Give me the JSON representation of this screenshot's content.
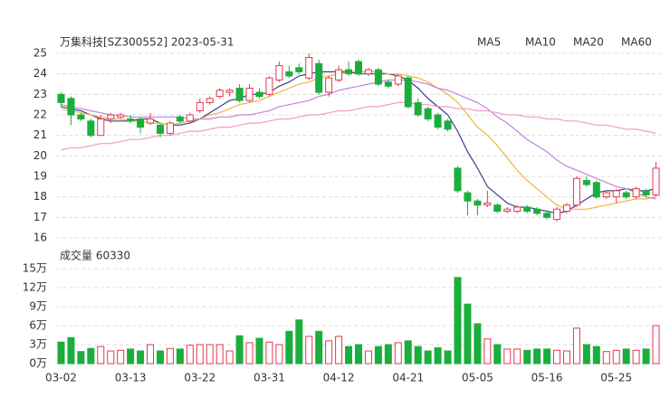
{
  "chart_data": [
    {
      "type": "candlestick",
      "title": "万集科技[SZ300552] 2023-05-31",
      "up_color": "#e8364d",
      "down_color": "#1aae3c",
      "grid": true,
      "ylim": [
        16,
        25
      ],
      "yticks": [
        16,
        17,
        18,
        19,
        20,
        21,
        22,
        23,
        24,
        25
      ],
      "open": [
        23.0,
        22.8,
        22.0,
        21.7,
        21.0,
        21.8,
        21.9,
        21.8,
        21.8,
        21.6,
        21.5,
        21.1,
        21.9,
        21.7,
        22.2,
        22.6,
        22.9,
        23.1,
        23.3,
        22.7,
        23.1,
        23.0,
        23.7,
        24.1,
        24.3,
        23.8,
        24.5,
        23.1,
        23.7,
        24.2,
        24.6,
        24.0,
        24.2,
        23.6,
        23.5,
        23.8,
        22.6,
        22.3,
        22.0,
        21.7,
        19.4,
        18.2,
        17.8,
        17.6,
        17.6,
        17.3,
        17.3,
        17.5,
        17.4,
        17.2,
        16.9,
        17.3,
        17.6,
        18.8,
        18.7,
        18.0,
        18.0,
        18.2,
        18.0,
        18.3,
        18.1
      ],
      "high": [
        23.1,
        22.9,
        22.1,
        21.8,
        22.0,
        22.1,
        22.1,
        22.0,
        21.9,
        22.1,
        21.6,
        21.7,
        22.0,
        22.1,
        22.8,
        22.9,
        23.3,
        23.3,
        23.5,
        23.5,
        23.3,
        23.9,
        24.6,
        24.4,
        24.5,
        25.0,
        24.7,
        23.9,
        24.4,
        24.6,
        24.7,
        24.3,
        24.3,
        23.7,
        24.0,
        23.9,
        22.8,
        22.4,
        22.1,
        21.8,
        19.5,
        18.3,
        17.9,
        18.3,
        17.7,
        17.5,
        17.6,
        17.6,
        17.5,
        17.3,
        17.5,
        17.7,
        19.0,
        19.0,
        18.8,
        18.3,
        18.4,
        18.3,
        18.5,
        18.4,
        19.7
      ],
      "low": [
        22.4,
        21.5,
        21.7,
        20.9,
        21.0,
        21.6,
        21.8,
        21.6,
        21.1,
        21.5,
        20.9,
        21.0,
        21.6,
        21.6,
        22.1,
        22.5,
        22.8,
        22.9,
        22.6,
        22.6,
        22.8,
        22.9,
        23.6,
        23.8,
        24.0,
        23.7,
        23.0,
        22.9,
        23.6,
        23.9,
        23.9,
        23.9,
        23.4,
        23.3,
        23.4,
        22.3,
        21.9,
        21.7,
        21.3,
        21.2,
        18.2,
        17.1,
        17.1,
        17.5,
        17.2,
        17.2,
        17.2,
        17.2,
        17.1,
        16.9,
        16.8,
        17.2,
        17.5,
        18.5,
        17.9,
        17.9,
        17.7,
        17.9,
        17.9,
        18.0,
        18.0
      ],
      "close": [
        22.6,
        22.0,
        21.8,
        21.0,
        21.8,
        22.0,
        22.0,
        21.7,
        21.4,
        21.8,
        21.1,
        21.6,
        21.7,
        22.0,
        22.6,
        22.8,
        23.2,
        23.2,
        22.7,
        23.3,
        22.9,
        23.8,
        24.4,
        23.9,
        24.1,
        24.8,
        23.1,
        23.8,
        24.2,
        24.0,
        24.0,
        24.2,
        23.5,
        23.4,
        23.9,
        22.4,
        22.0,
        21.8,
        21.4,
        21.3,
        18.3,
        17.8,
        17.6,
        17.7,
        17.3,
        17.4,
        17.5,
        17.3,
        17.2,
        17.0,
        17.4,
        17.6,
        18.9,
        18.6,
        18.0,
        18.2,
        18.3,
        18.0,
        18.4,
        18.1,
        19.4
      ],
      "series": [
        {
          "name": "MA5",
          "color": "#3a3f8f",
          "values": [
            22.4,
            22.3,
            22.2,
            22.0,
            21.8,
            21.7,
            21.7,
            21.7,
            21.8,
            21.8,
            21.6,
            21.5,
            21.5,
            21.6,
            21.8,
            22.1,
            22.4,
            22.7,
            22.8,
            23.0,
            23.0,
            23.1,
            23.4,
            23.6,
            23.9,
            24.0,
            24.1,
            24.1,
            24.1,
            24.1,
            24.0,
            24.0,
            24.0,
            24.0,
            23.9,
            23.7,
            23.3,
            22.8,
            22.4,
            22.0,
            21.2,
            20.2,
            19.4,
            18.5,
            18.1,
            17.7,
            17.5,
            17.5,
            17.4,
            17.3,
            17.2,
            17.3,
            17.6,
            17.9,
            18.2,
            18.3,
            18.3,
            18.4,
            18.3,
            18.3,
            18.4
          ]
        },
        {
          "name": "MA10",
          "color": "#f0b43c",
          "values": [
            22.3,
            22.2,
            22.1,
            22.0,
            21.9,
            21.8,
            21.8,
            21.7,
            21.7,
            21.6,
            21.6,
            21.5,
            21.6,
            21.7,
            21.8,
            22.0,
            22.1,
            22.3,
            22.5,
            22.6,
            22.7,
            22.9,
            23.1,
            23.3,
            23.5,
            23.6,
            23.8,
            23.9,
            24.0,
            24.1,
            24.1,
            24.1,
            24.1,
            24.0,
            24.0,
            23.9,
            23.8,
            23.6,
            23.3,
            23.0,
            22.6,
            22.0,
            21.4,
            21.0,
            20.5,
            19.9,
            19.3,
            18.8,
            18.4,
            18.0,
            17.6,
            17.4,
            17.4,
            17.4,
            17.5,
            17.6,
            17.7,
            17.8,
            17.9,
            17.9,
            18.0
          ]
        },
        {
          "name": "MA20",
          "color": "#c084e0",
          "values": [
            22.5,
            22.4,
            22.3,
            22.2,
            22.1,
            22.0,
            22.0,
            21.9,
            21.9,
            21.9,
            21.9,
            21.9,
            21.9,
            21.8,
            21.8,
            21.8,
            21.9,
            21.9,
            22.0,
            22.0,
            22.1,
            22.2,
            22.4,
            22.5,
            22.6,
            22.7,
            22.9,
            23.0,
            23.2,
            23.3,
            23.4,
            23.5,
            23.6,
            23.7,
            23.7,
            23.7,
            23.6,
            23.5,
            23.3,
            23.2,
            23.0,
            22.8,
            22.6,
            22.3,
            21.9,
            21.6,
            21.2,
            20.8,
            20.5,
            20.2,
            19.8,
            19.5,
            19.3,
            19.1,
            18.9,
            18.7,
            18.5,
            18.4,
            18.2,
            18.0,
            17.9
          ]
        },
        {
          "name": "MA60",
          "color": "#f29ac6",
          "values": [
            20.3,
            20.4,
            20.4,
            20.5,
            20.6,
            20.6,
            20.7,
            20.8,
            20.8,
            20.9,
            21.0,
            21.0,
            21.1,
            21.2,
            21.2,
            21.3,
            21.4,
            21.4,
            21.5,
            21.6,
            21.6,
            21.7,
            21.8,
            21.8,
            21.9,
            22.0,
            22.0,
            22.1,
            22.2,
            22.2,
            22.3,
            22.4,
            22.4,
            22.5,
            22.6,
            22.6,
            22.5,
            22.5,
            22.4,
            22.4,
            22.3,
            22.3,
            22.2,
            22.2,
            22.1,
            22.0,
            22.0,
            21.9,
            21.9,
            21.8,
            21.8,
            21.7,
            21.7,
            21.6,
            21.5,
            21.5,
            21.4,
            21.3,
            21.3,
            21.2,
            21.1
          ]
        }
      ]
    },
    {
      "type": "bar",
      "title": "成交量 60330",
      "grid": true,
      "categories": [
        "03-02",
        null,
        null,
        null,
        null,
        null,
        null,
        "03-13",
        null,
        null,
        null,
        null,
        null,
        null,
        "03-22",
        null,
        null,
        null,
        null,
        null,
        null,
        "03-31",
        null,
        null,
        null,
        null,
        null,
        null,
        "04-12",
        null,
        null,
        null,
        null,
        null,
        null,
        "04-21",
        null,
        null,
        null,
        null,
        null,
        null,
        "05-05",
        null,
        null,
        null,
        null,
        null,
        null,
        "05-16",
        null,
        null,
        null,
        null,
        null,
        null,
        "05-25",
        null,
        null,
        null,
        null
      ],
      "values": [
        3.4,
        4.1,
        1.9,
        2.4,
        2.7,
        2.0,
        2.1,
        2.3,
        2.0,
        3.0,
        2.0,
        2.4,
        2.3,
        2.9,
        3.0,
        3.0,
        3.0,
        2.0,
        4.4,
        3.3,
        4.0,
        3.4,
        3.0,
        5.1,
        6.9,
        4.3,
        5.1,
        3.6,
        4.3,
        2.7,
        3.0,
        2.0,
        2.7,
        3.0,
        3.3,
        3.6,
        2.7,
        2.0,
        2.5,
        2.0,
        13.6,
        9.4,
        6.3,
        3.9,
        3.0,
        2.3,
        2.3,
        2.1,
        2.3,
        2.3,
        2.1,
        2.0,
        5.6,
        3.0,
        2.7,
        1.9,
        2.1,
        2.3,
        2.1,
        2.3,
        6.0
      ],
      "ylim": [
        0,
        15
      ],
      "yticks": [
        {
          "value": 0,
          "label": "0万"
        },
        {
          "value": 3,
          "label": "3万"
        },
        {
          "value": 6,
          "label": "6万"
        },
        {
          "value": 9,
          "label": "9万"
        },
        {
          "value": 12,
          "label": "12万"
        },
        {
          "value": 15,
          "label": "15万"
        }
      ]
    }
  ]
}
